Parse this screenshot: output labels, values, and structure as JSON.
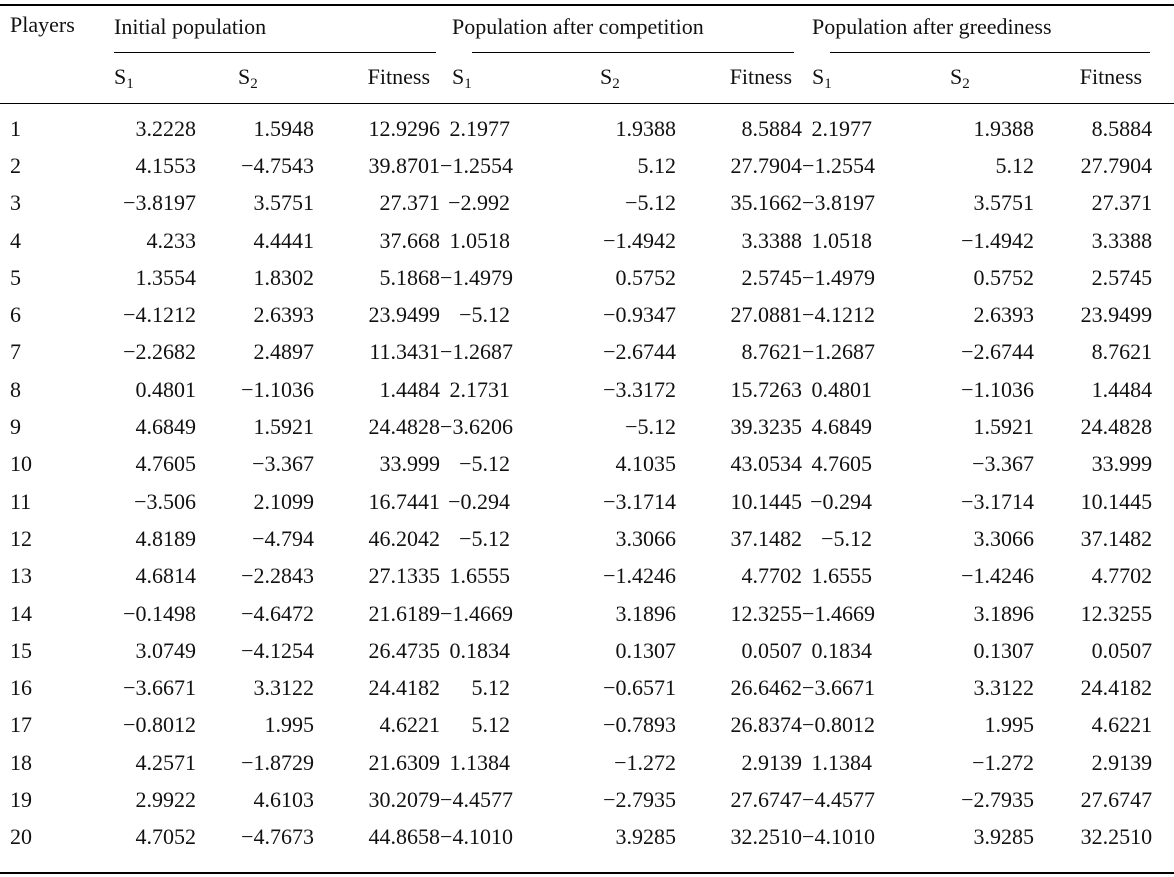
{
  "table": {
    "header_players": "Players",
    "groups": [
      {
        "label": "Initial population"
      },
      {
        "label": "Population after competition"
      },
      {
        "label": "Population after greediness"
      }
    ],
    "subcols": {
      "s_letter": "S",
      "s1_sub": "1",
      "s2_sub": "2",
      "fitness": "Fitness"
    },
    "rows": [
      {
        "player": "1",
        "v": [
          "3.2228",
          "1.5948",
          "12.9296",
          "2.1977",
          "1.9388",
          "8.5884",
          "2.1977",
          "1.9388",
          "8.5884"
        ]
      },
      {
        "player": "2",
        "v": [
          "4.1553",
          "−4.7543",
          "39.8701",
          "−1.2554",
          "5.12",
          "27.7904",
          "−1.2554",
          "5.12",
          "27.7904"
        ]
      },
      {
        "player": "3",
        "v": [
          "−3.8197",
          "3.5751",
          "27.371",
          "−2.992",
          "−5.12",
          "35.1662",
          "−3.8197",
          "3.5751",
          "27.371"
        ]
      },
      {
        "player": "4",
        "v": [
          "4.233",
          "4.4441",
          "37.668",
          "1.0518",
          "−1.4942",
          "3.3388",
          "1.0518",
          "−1.4942",
          "3.3388"
        ]
      },
      {
        "player": "5",
        "v": [
          "1.3554",
          "1.8302",
          "5.1868",
          "−1.4979",
          "0.5752",
          "2.5745",
          "−1.4979",
          "0.5752",
          "2.5745"
        ]
      },
      {
        "player": "6",
        "v": [
          "−4.1212",
          "2.6393",
          "23.9499",
          "−5.12",
          "−0.9347",
          "27.0881",
          "−4.1212",
          "2.6393",
          "23.9499"
        ]
      },
      {
        "player": "7",
        "v": [
          "−2.2682",
          "2.4897",
          "11.3431",
          "−1.2687",
          "−2.6744",
          "8.7621",
          "−1.2687",
          "−2.6744",
          "8.7621"
        ]
      },
      {
        "player": "8",
        "v": [
          "0.4801",
          "−1.1036",
          "1.4484",
          "2.1731",
          "−3.3172",
          "15.7263",
          "0.4801",
          "−1.1036",
          "1.4484"
        ]
      },
      {
        "player": "9",
        "v": [
          "4.6849",
          "1.5921",
          "24.4828",
          "−3.6206",
          "−5.12",
          "39.3235",
          "4.6849",
          "1.5921",
          "24.4828"
        ]
      },
      {
        "player": "10",
        "v": [
          "4.7605",
          "−3.367",
          "33.999",
          "−5.12",
          "4.1035",
          "43.0534",
          "4.7605",
          "−3.367",
          "33.999"
        ]
      },
      {
        "player": "11",
        "v": [
          "−3.506",
          "2.1099",
          "16.7441",
          "−0.294",
          "−3.1714",
          "10.1445",
          "−0.294",
          "−3.1714",
          "10.1445"
        ]
      },
      {
        "player": "12",
        "v": [
          "4.8189",
          "−4.794",
          "46.2042",
          "−5.12",
          "3.3066",
          "37.1482",
          "−5.12",
          "3.3066",
          "37.1482"
        ]
      },
      {
        "player": "13",
        "v": [
          "4.6814",
          "−2.2843",
          "27.1335",
          "1.6555",
          "−1.4246",
          "4.7702",
          "1.6555",
          "−1.4246",
          "4.7702"
        ]
      },
      {
        "player": "14",
        "v": [
          "−0.1498",
          "−4.6472",
          "21.6189",
          "−1.4669",
          "3.1896",
          "12.3255",
          "−1.4669",
          "3.1896",
          "12.3255"
        ]
      },
      {
        "player": "15",
        "v": [
          "3.0749",
          "−4.1254",
          "26.4735",
          "0.1834",
          "0.1307",
          "0.0507",
          "0.1834",
          "0.1307",
          "0.0507"
        ]
      },
      {
        "player": "16",
        "v": [
          "−3.6671",
          "3.3122",
          "24.4182",
          "5.12",
          "−0.6571",
          "26.6462",
          "−3.6671",
          "3.3122",
          "24.4182"
        ]
      },
      {
        "player": "17",
        "v": [
          "−0.8012",
          "1.995",
          "4.6221",
          "5.12",
          "−0.7893",
          "26.8374",
          "−0.8012",
          "1.995",
          "4.6221"
        ]
      },
      {
        "player": "18",
        "v": [
          "4.2571",
          "−1.8729",
          "21.6309",
          "1.1384",
          "−1.272",
          "2.9139",
          "1.1384",
          "−1.272",
          "2.9139"
        ]
      },
      {
        "player": "19",
        "v": [
          "2.9922",
          "4.6103",
          "30.2079",
          "−4.4577",
          "−2.7935",
          "27.6747",
          "−4.4577",
          "−2.7935",
          "27.6747"
        ]
      },
      {
        "player": "20",
        "v": [
          "4.7052",
          "−4.7673",
          "44.8658",
          "−4.1010",
          "3.9285",
          "32.2510",
          "−4.1010",
          "3.9285",
          "32.2510"
        ]
      }
    ]
  }
}
